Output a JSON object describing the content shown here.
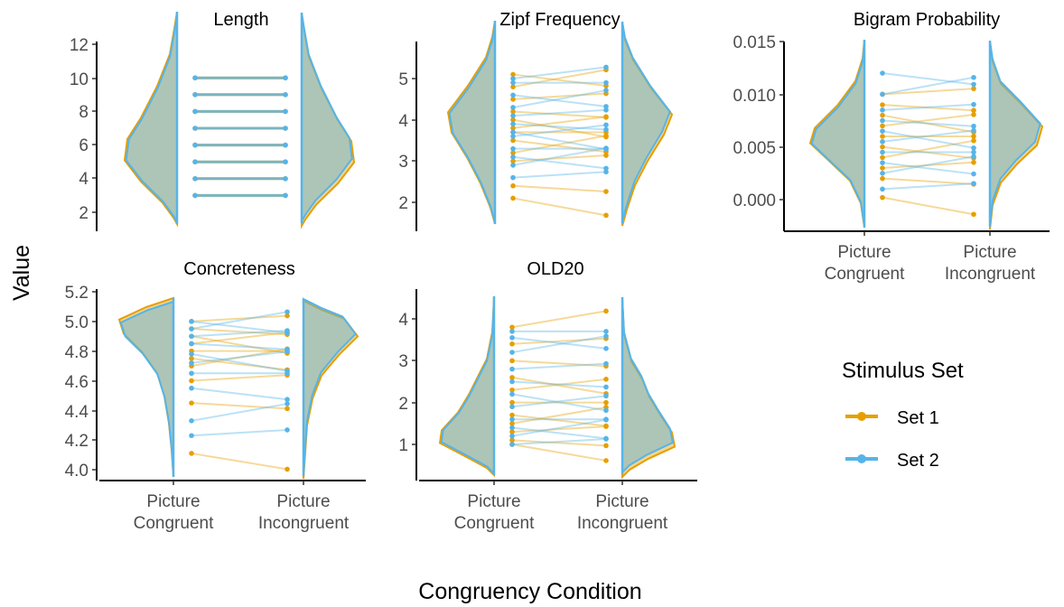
{
  "figure": {
    "x_axis_label": "Congruency Condition",
    "y_axis_label": "Value",
    "colors": {
      "set1": "#E69F00",
      "set2": "#56B4E9",
      "overlap": "#9DB39B"
    }
  },
  "legend": {
    "title": "Stimulus Set",
    "items": [
      {
        "label": "Set 1",
        "color": "#E69F00"
      },
      {
        "label": "Set 2",
        "color": "#56B4E9"
      }
    ]
  },
  "chart_data": [
    {
      "type": "violin-paired",
      "title": "Length",
      "categories": [
        "Picture\nCongruent",
        "Picture\nIncongruent"
      ],
      "xlabel": "Congruency Condition",
      "ylabel": "Value",
      "ylim": [
        1.2,
        12.2
      ],
      "yticks": [
        "2",
        "4",
        "6",
        "8",
        "10",
        "12"
      ],
      "show_x_ticks": false,
      "series": [
        {
          "name": "Set 1",
          "values": [
            3,
            4,
            5,
            6,
            7,
            8,
            9,
            10
          ]
        },
        {
          "name": "Set 2",
          "values": [
            3,
            4,
            5,
            6,
            7,
            8,
            9,
            10
          ]
        }
      ]
    },
    {
      "type": "violin-paired",
      "title": "Zipf Frequency",
      "categories": [
        "Picture\nCongruent",
        "Picture\nIncongruent"
      ],
      "xlabel": "Congruency Condition",
      "ylabel": "Value",
      "ylim": [
        1.3,
        5.9
      ],
      "yticks": [
        "2",
        "3",
        "4",
        "5"
      ],
      "show_x_ticks": false,
      "series": [
        {
          "name": "Set 1",
          "values": [
            2.1,
            2.4,
            3.0,
            3.2,
            3.5,
            3.7,
            3.8,
            4.0,
            4.2,
            4.5,
            4.8,
            5.1
          ]
        },
        {
          "name": "Set 2",
          "values": [
            2.6,
            2.9,
            3.1,
            3.3,
            3.6,
            3.7,
            3.9,
            4.1,
            4.3,
            4.6,
            4.9,
            5.0
          ]
        }
      ]
    },
    {
      "type": "violin-paired",
      "title": "Bigram Probability",
      "categories": [
        "Picture\nCongruent",
        "Picture\nIncongruent"
      ],
      "xlabel": "Congruency Condition",
      "ylabel": "Value",
      "ylim": [
        -0.0025,
        0.0152
      ],
      "yticks": [
        "0.000",
        "0.005",
        "0.010",
        "0.015"
      ],
      "show_x_ticks": true,
      "series": [
        {
          "name": "Set 1",
          "values": [
            0.0002,
            0.002,
            0.003,
            0.004,
            0.005,
            0.006,
            0.007,
            0.008,
            0.009,
            0.01
          ]
        },
        {
          "name": "Set 2",
          "values": [
            0.001,
            0.0025,
            0.0035,
            0.0045,
            0.0055,
            0.0065,
            0.0075,
            0.0085,
            0.01,
            0.012
          ]
        }
      ]
    },
    {
      "type": "violin-paired",
      "title": "Concreteness",
      "categories": [
        "Picture\nCongruent",
        "Picture\nIncongruent"
      ],
      "xlabel": "Congruency Condition",
      "ylabel": "Value",
      "ylim": [
        3.94,
        5.21
      ],
      "yticks": [
        "4.0",
        "4.2",
        "4.4",
        "4.6",
        "4.8",
        "5.0",
        "5.2"
      ],
      "show_x_ticks": true,
      "series": [
        {
          "name": "Set 1",
          "values": [
            4.11,
            4.45,
            4.6,
            4.7,
            4.75,
            4.8,
            4.85,
            4.9,
            4.95,
            5.0
          ]
        },
        {
          "name": "Set 2",
          "values": [
            4.23,
            4.33,
            4.55,
            4.65,
            4.72,
            4.78,
            4.85,
            4.9,
            4.95,
            5.0
          ]
        }
      ]
    },
    {
      "type": "violin-paired",
      "title": "OLD20",
      "categories": [
        "Picture\nCongruent",
        "Picture\nIncongruent"
      ],
      "xlabel": "Congruency Condition",
      "ylabel": "Value",
      "ylim": [
        0.3,
        4.6
      ],
      "yticks": [
        "1",
        "2",
        "3",
        "4"
      ],
      "show_x_ticks": true,
      "series": [
        {
          "name": "Set 1",
          "values": [
            1.0,
            1.1,
            1.3,
            1.5,
            1.7,
            2.0,
            2.3,
            2.6,
            3.0,
            3.4,
            3.8
          ]
        },
        {
          "name": "Set 2",
          "values": [
            1.0,
            1.2,
            1.4,
            1.6,
            1.9,
            2.2,
            2.5,
            2.8,
            3.2,
            3.55,
            3.7
          ]
        }
      ]
    }
  ]
}
